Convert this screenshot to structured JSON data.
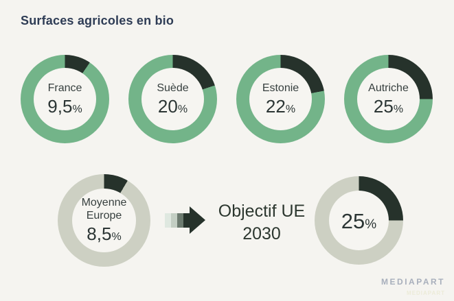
{
  "title": "Surfaces agricoles en bio",
  "colors": {
    "background": "#f5f4f0",
    "green": "#73b489",
    "dark": "#26322b",
    "grey": "#cdd0c3",
    "title_text": "#2e3c55",
    "donut_text": "#2b3534",
    "objective_text": "#2c372f"
  },
  "donuts": [
    {
      "label": "France",
      "value": 9.5,
      "display": "9,5",
      "unit": "%",
      "ring": "#73b489"
    },
    {
      "label": "Suède",
      "value": 20,
      "display": "20",
      "unit": "%",
      "ring": "#73b489"
    },
    {
      "label": "Estonie",
      "value": 22,
      "display": "22",
      "unit": "%",
      "ring": "#73b489"
    },
    {
      "label": "Autriche",
      "value": 25,
      "display": "25",
      "unit": "%",
      "ring": "#73b489"
    },
    {
      "label": "Moyenne Europe",
      "label_line1": "Moyenne",
      "label_line2": "Europe",
      "value": 8.5,
      "display": "8,5",
      "unit": "%",
      "ring": "#cdd0c3"
    },
    {
      "label": "Objectif UE 2030",
      "value": 25,
      "display": "25",
      "unit": "%",
      "ring": "#cdd0c3"
    }
  ],
  "objective": {
    "line1": "Objectif UE",
    "line2": "2030"
  },
  "arrow": {
    "segments": [
      "#dfe8e0",
      "#c3cec3",
      "#6c7a6f",
      "#26322b"
    ],
    "head": "#26322b"
  },
  "footer": {
    "brand": "MEDIAPART",
    "watermark": "MEDIAPART"
  },
  "chart_data": {
    "type": "pie",
    "variant": "donut",
    "title": "Surfaces agricoles en bio",
    "unit": "%",
    "series": [
      {
        "name": "France",
        "value": 9.5,
        "ring_color": "#73b489",
        "segment_color": "#26322b"
      },
      {
        "name": "Suède",
        "value": 20,
        "ring_color": "#73b489",
        "segment_color": "#26322b"
      },
      {
        "name": "Estonie",
        "value": 22,
        "ring_color": "#73b489",
        "segment_color": "#26322b"
      },
      {
        "name": "Autriche",
        "value": 25,
        "ring_color": "#73b489",
        "segment_color": "#26322b"
      },
      {
        "name": "Moyenne Europe",
        "value": 8.5,
        "ring_color": "#cdd0c3",
        "segment_color": "#26322b"
      },
      {
        "name": "Objectif UE 2030",
        "value": 25,
        "ring_color": "#cdd0c3",
        "segment_color": "#26322b"
      }
    ],
    "layout_hints": {
      "segment_start": "12-o'clock, clockwise",
      "rows": [
        [
          "France",
          "Suède",
          "Estonie",
          "Autriche"
        ],
        [
          "Moyenne Europe",
          "arrow",
          "Objectif UE 2030"
        ]
      ]
    }
  }
}
